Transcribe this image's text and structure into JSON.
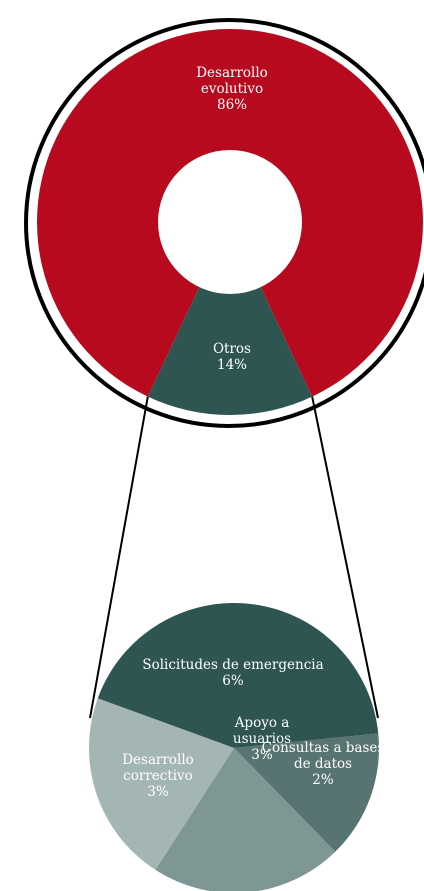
{
  "chart_data": [
    {
      "type": "pie",
      "variant": "donut",
      "slices": [
        {
          "label_lines": [
            "Desarrollo",
            "evolutivo"
          ],
          "value_label": "86%",
          "value": 86,
          "color": "#b80a1e"
        },
        {
          "label_lines": [
            "Otros"
          ],
          "value_label": "14%",
          "value": 14,
          "color": "#2f5552"
        }
      ]
    },
    {
      "type": "pie",
      "breakdown_of": "Otros",
      "slices": [
        {
          "label_lines": [
            "Solicitudes de emergencia"
          ],
          "value_label": "6%",
          "value": 6,
          "color": "#2f5552"
        },
        {
          "label_lines": [
            "Consultas a bases",
            "de datos"
          ],
          "value_label": "2%",
          "value": 2,
          "color": "#587472"
        },
        {
          "label_lines": [
            "Apoyo a",
            "usuarios"
          ],
          "value_label": "3%",
          "value": 3,
          "color": "#7e9694"
        },
        {
          "label_lines": [
            "Desarrollo",
            "correctivo"
          ],
          "value_label": "3%",
          "value": 3,
          "color": "#a4b6b4"
        }
      ]
    }
  ]
}
